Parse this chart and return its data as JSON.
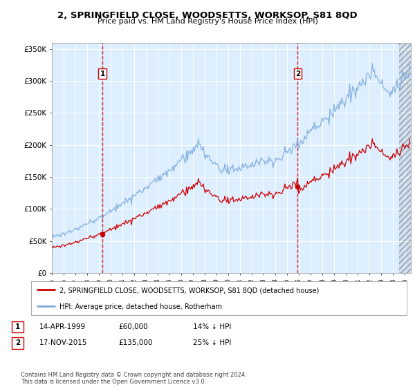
{
  "title": "2, SPRINGFIELD CLOSE, WOODSETTS, WORKSOP, S81 8QD",
  "subtitle": "Price paid vs. HM Land Registry's House Price Index (HPI)",
  "legend_line1": "2, SPRINGFIELD CLOSE, WOODSETTS, WORKSOP, S81 8QD (detached house)",
  "legend_line2": "HPI: Average price, detached house, Rotherham",
  "annotation1_date": "14-APR-1999",
  "annotation1_price": "£60,000",
  "annotation1_hpi": "14% ↓ HPI",
  "annotation2_date": "17-NOV-2015",
  "annotation2_price": "£135,000",
  "annotation2_hpi": "25% ↓ HPI",
  "footer": "Contains HM Land Registry data © Crown copyright and database right 2024.\nThis data is licensed under the Open Government Licence v3.0.",
  "sale1_year": 1999.29,
  "sale1_price": 60000,
  "sale2_year": 2015.89,
  "sale2_price": 135000,
  "hpi_color": "#7aaadd",
  "price_color": "#cc0000",
  "vline_color": "#cc0000",
  "bg_color": "#ddeeff",
  "ylim_max": 360000,
  "ylim_min": 0,
  "xmin": 1995.0,
  "xmax": 2025.5
}
